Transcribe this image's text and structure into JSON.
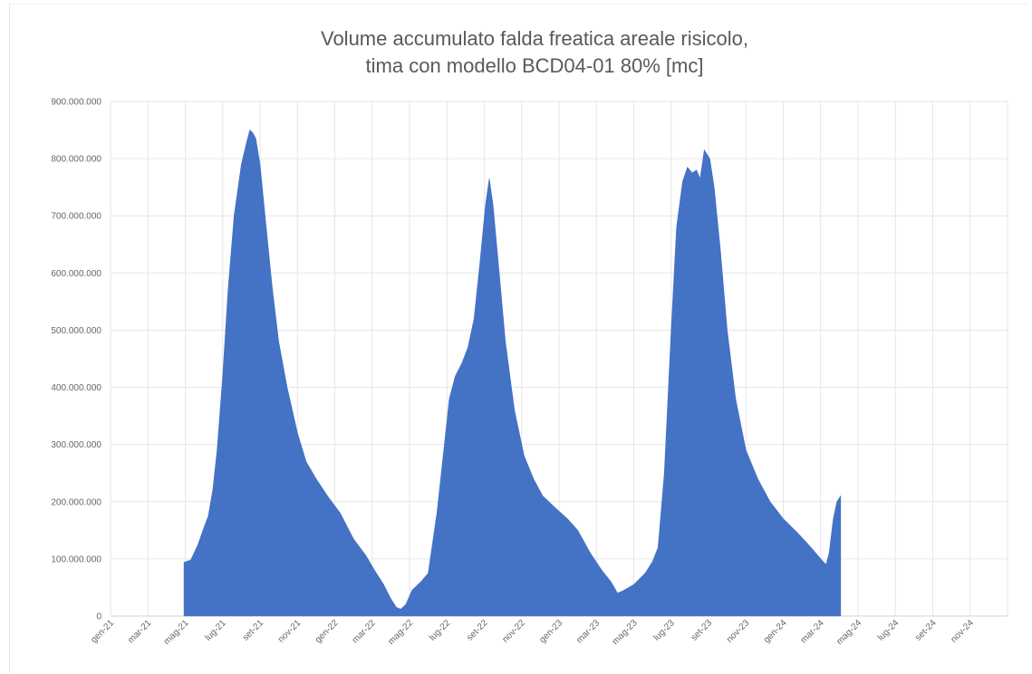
{
  "chart_data": {
    "type": "area",
    "title_lines": [
      "Volume accumulato falda freatica areale risicolo,",
      "tima con modello BCD04-01 80% [mc]"
    ],
    "ylim": [
      0,
      900000000
    ],
    "yticks": [
      {
        "v": 0,
        "label": "0"
      },
      {
        "v": 100000000,
        "label": "100.000.000"
      },
      {
        "v": 200000000,
        "label": "200.000.000"
      },
      {
        "v": 300000000,
        "label": "300.000.000"
      },
      {
        "v": 400000000,
        "label": "400.000.000"
      },
      {
        "v": 500000000,
        "label": "500.000.000"
      },
      {
        "v": 600000000,
        "label": "600.000.000"
      },
      {
        "v": 700000000,
        "label": "700.000.000"
      },
      {
        "v": 800000000,
        "label": "800.000.000"
      },
      {
        "v": 900000000,
        "label": "900.000.000"
      }
    ],
    "xticks": [
      "gen-21",
      "mar-21",
      "mag-21",
      "lug-21",
      "set-21",
      "nov-21",
      "gen-22",
      "mar-22",
      "mag-22",
      "lug-22",
      "set-22",
      "nov-22",
      "gen-23",
      "mar-23",
      "mag-23",
      "lug-23",
      "set-23",
      "nov-23",
      "gen-24",
      "mar-24",
      "mag-24",
      "lug-24",
      "set-24",
      "nov-24"
    ],
    "grid": true,
    "color": "#4472c4",
    "series": [
      {
        "points": [
          [
            "2021-04-29",
            94000000
          ],
          [
            "2021-05-10",
            98000000
          ],
          [
            "2021-05-22",
            125000000
          ],
          [
            "2021-06-01",
            155000000
          ],
          [
            "2021-06-08",
            175000000
          ],
          [
            "2021-06-15",
            220000000
          ],
          [
            "2021-06-22",
            290000000
          ],
          [
            "2021-07-01",
            420000000
          ],
          [
            "2021-07-10",
            570000000
          ],
          [
            "2021-07-20",
            700000000
          ],
          [
            "2021-08-01",
            790000000
          ],
          [
            "2021-08-10",
            830000000
          ],
          [
            "2021-08-15",
            850000000
          ],
          [
            "2021-08-20",
            845000000
          ],
          [
            "2021-08-25",
            835000000
          ],
          [
            "2021-09-01",
            790000000
          ],
          [
            "2021-09-10",
            690000000
          ],
          [
            "2021-09-20",
            580000000
          ],
          [
            "2021-10-01",
            480000000
          ],
          [
            "2021-10-15",
            400000000
          ],
          [
            "2021-11-01",
            320000000
          ],
          [
            "2021-11-15",
            270000000
          ],
          [
            "2021-12-01",
            240000000
          ],
          [
            "2021-12-20",
            210000000
          ],
          [
            "2022-01-10",
            180000000
          ],
          [
            "2022-02-01",
            135000000
          ],
          [
            "2022-02-20",
            105000000
          ],
          [
            "2022-03-05",
            80000000
          ],
          [
            "2022-03-20",
            55000000
          ],
          [
            "2022-04-01",
            30000000
          ],
          [
            "2022-04-10",
            15000000
          ],
          [
            "2022-04-17",
            12000000
          ],
          [
            "2022-04-25",
            20000000
          ],
          [
            "2022-05-05",
            45000000
          ],
          [
            "2022-05-20",
            60000000
          ],
          [
            "2022-06-01",
            75000000
          ],
          [
            "2022-06-15",
            180000000
          ],
          [
            "2022-06-25",
            280000000
          ],
          [
            "2022-07-05",
            380000000
          ],
          [
            "2022-07-15",
            420000000
          ],
          [
            "2022-07-25",
            440000000
          ],
          [
            "2022-08-05",
            470000000
          ],
          [
            "2022-08-15",
            520000000
          ],
          [
            "2022-08-25",
            620000000
          ],
          [
            "2022-09-03",
            720000000
          ],
          [
            "2022-09-09",
            765000000
          ],
          [
            "2022-09-15",
            720000000
          ],
          [
            "2022-09-25",
            600000000
          ],
          [
            "2022-10-05",
            480000000
          ],
          [
            "2022-10-20",
            360000000
          ],
          [
            "2022-11-05",
            280000000
          ],
          [
            "2022-11-20",
            240000000
          ],
          [
            "2022-12-05",
            210000000
          ],
          [
            "2022-12-25",
            190000000
          ],
          [
            "2023-01-15",
            170000000
          ],
          [
            "2023-02-01",
            150000000
          ],
          [
            "2023-02-20",
            110000000
          ],
          [
            "2023-03-10",
            80000000
          ],
          [
            "2023-03-25",
            60000000
          ],
          [
            "2023-04-05",
            40000000
          ],
          [
            "2023-04-15",
            45000000
          ],
          [
            "2023-05-01",
            55000000
          ],
          [
            "2023-05-20",
            75000000
          ],
          [
            "2023-06-01",
            95000000
          ],
          [
            "2023-06-10",
            120000000
          ],
          [
            "2023-06-20",
            250000000
          ],
          [
            "2023-07-01",
            500000000
          ],
          [
            "2023-07-10",
            680000000
          ],
          [
            "2023-07-20",
            760000000
          ],
          [
            "2023-07-28",
            785000000
          ],
          [
            "2023-08-05",
            775000000
          ],
          [
            "2023-08-12",
            780000000
          ],
          [
            "2023-08-18",
            765000000
          ],
          [
            "2023-08-25",
            815000000
          ],
          [
            "2023-09-03",
            800000000
          ],
          [
            "2023-09-10",
            750000000
          ],
          [
            "2023-09-20",
            640000000
          ],
          [
            "2023-10-01",
            500000000
          ],
          [
            "2023-10-15",
            380000000
          ],
          [
            "2023-11-01",
            290000000
          ],
          [
            "2023-11-20",
            240000000
          ],
          [
            "2023-12-10",
            200000000
          ],
          [
            "2024-01-01",
            170000000
          ],
          [
            "2024-01-25",
            145000000
          ],
          [
            "2024-02-15",
            120000000
          ],
          [
            "2024-03-01",
            100000000
          ],
          [
            "2024-03-10",
            90000000
          ],
          [
            "2024-03-15",
            110000000
          ],
          [
            "2024-03-22",
            170000000
          ],
          [
            "2024-03-28",
            200000000
          ],
          [
            "2024-04-03",
            210000000
          ]
        ]
      }
    ]
  }
}
